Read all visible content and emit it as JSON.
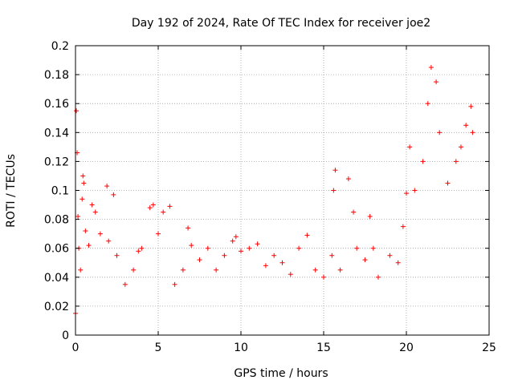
{
  "chart_data": {
    "type": "scatter",
    "title": "Day 192 of 2024, Rate Of TEC Index for receiver joe2",
    "xlabel": "GPS time / hours",
    "ylabel": "ROTI / TECUs",
    "xlim": [
      0,
      25
    ],
    "ylim": [
      0,
      0.2
    ],
    "x_ticks": [
      "0",
      "5",
      "10",
      "15",
      "20",
      "25"
    ],
    "y_ticks": [
      "0",
      "0.02",
      "0.04",
      "0.06",
      "0.08",
      "0.1",
      "0.12",
      "0.14",
      "0.16",
      "0.18",
      "0.2"
    ],
    "grid": true,
    "legend": "none",
    "marker": "+",
    "color": "#ff0000",
    "series": [
      {
        "values": [
          [
            0.0,
            0.015
          ],
          [
            0.05,
            0.155
          ],
          [
            0.1,
            0.126
          ],
          [
            0.15,
            0.082
          ],
          [
            0.2,
            0.06
          ],
          [
            0.3,
            0.045
          ],
          [
            0.4,
            0.094
          ],
          [
            0.45,
            0.11
          ],
          [
            0.5,
            0.105
          ],
          [
            0.6,
            0.072
          ],
          [
            0.8,
            0.062
          ],
          [
            1.0,
            0.09
          ],
          [
            1.2,
            0.085
          ],
          [
            1.5,
            0.07
          ],
          [
            1.9,
            0.103
          ],
          [
            2.0,
            0.065
          ],
          [
            2.3,
            0.097
          ],
          [
            2.5,
            0.055
          ],
          [
            3.0,
            0.035
          ],
          [
            3.5,
            0.045
          ],
          [
            3.8,
            0.058
          ],
          [
            4.0,
            0.06
          ],
          [
            4.5,
            0.088
          ],
          [
            4.7,
            0.09
          ],
          [
            5.0,
            0.07
          ],
          [
            5.3,
            0.085
          ],
          [
            5.7,
            0.089
          ],
          [
            6.0,
            0.035
          ],
          [
            6.5,
            0.045
          ],
          [
            6.8,
            0.074
          ],
          [
            7.0,
            0.062
          ],
          [
            7.5,
            0.052
          ],
          [
            8.0,
            0.06
          ],
          [
            8.5,
            0.045
          ],
          [
            9.0,
            0.055
          ],
          [
            9.5,
            0.065
          ],
          [
            9.7,
            0.068
          ],
          [
            10.0,
            0.058
          ],
          [
            10.5,
            0.06
          ],
          [
            11.0,
            0.063
          ],
          [
            11.5,
            0.048
          ],
          [
            12.0,
            0.055
          ],
          [
            12.5,
            0.05
          ],
          [
            13.0,
            0.042
          ],
          [
            13.5,
            0.06
          ],
          [
            14.0,
            0.069
          ],
          [
            14.5,
            0.045
          ],
          [
            15.0,
            0.04
          ],
          [
            15.5,
            0.055
          ],
          [
            15.6,
            0.1
          ],
          [
            15.7,
            0.114
          ],
          [
            16.0,
            0.045
          ],
          [
            16.5,
            0.108
          ],
          [
            16.8,
            0.085
          ],
          [
            17.0,
            0.06
          ],
          [
            17.5,
            0.052
          ],
          [
            17.8,
            0.082
          ],
          [
            18.0,
            0.06
          ],
          [
            18.3,
            0.04
          ],
          [
            19.0,
            0.055
          ],
          [
            19.5,
            0.05
          ],
          [
            19.8,
            0.075
          ],
          [
            20.0,
            0.098
          ],
          [
            20.2,
            0.13
          ],
          [
            20.5,
            0.1
          ],
          [
            21.0,
            0.12
          ],
          [
            21.3,
            0.16
          ],
          [
            21.5,
            0.185
          ],
          [
            21.8,
            0.175
          ],
          [
            22.0,
            0.14
          ],
          [
            22.5,
            0.105
          ],
          [
            23.0,
            0.12
          ],
          [
            23.3,
            0.13
          ],
          [
            23.6,
            0.145
          ],
          [
            23.9,
            0.158
          ],
          [
            24.0,
            0.14
          ]
        ]
      }
    ]
  }
}
